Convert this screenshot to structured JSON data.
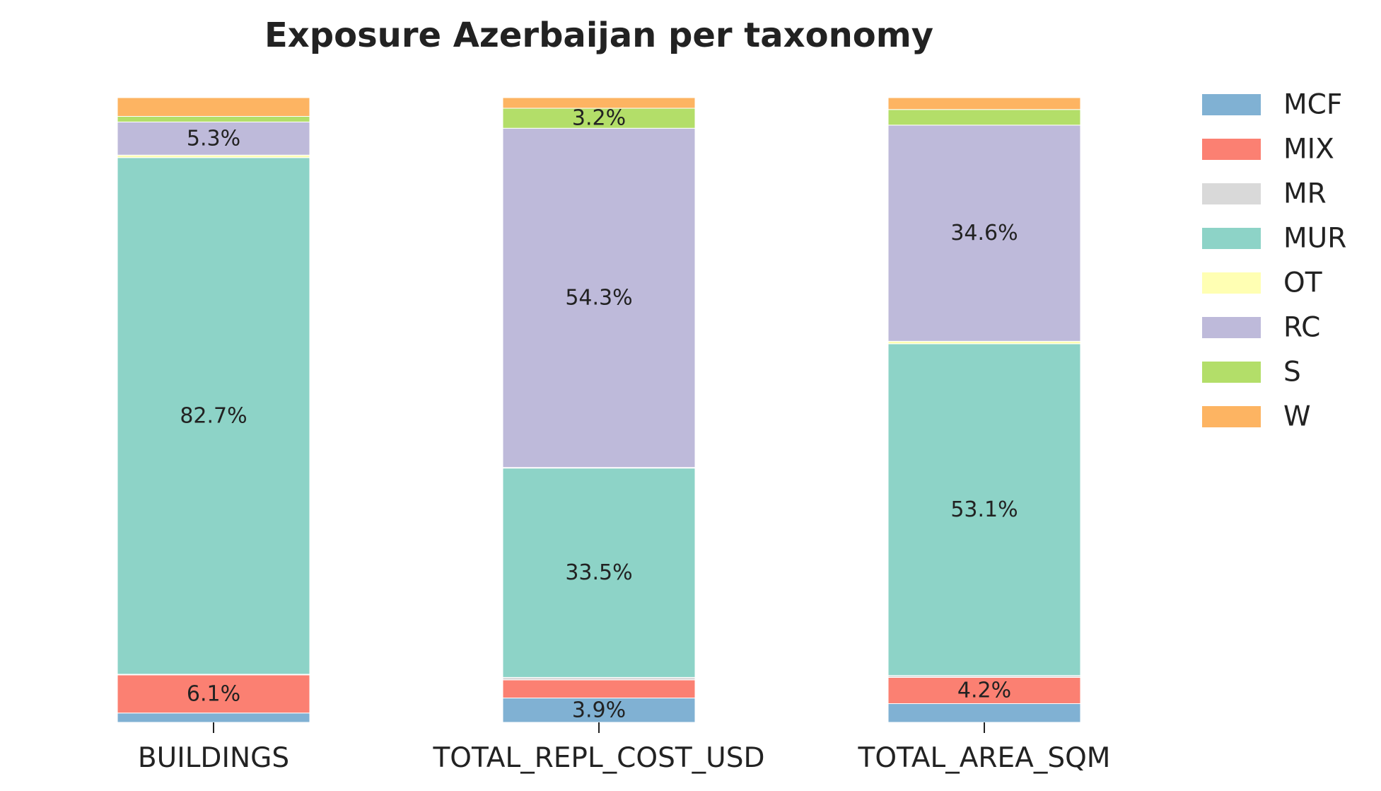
{
  "chart_data": {
    "type": "bar",
    "stacked": true,
    "title": "Exposure Azerbaijan per taxonomy",
    "categories": [
      "BUILDINGS",
      "TOTAL_REPL_COST_USD",
      "TOTAL_AREA_SQM"
    ],
    "ylim": [
      0,
      100
    ],
    "grid": false,
    "legend_position": "right",
    "series": [
      {
        "name": "MCF",
        "color": "#80b1d3",
        "values": [
          1.5,
          3.9,
          3.0
        ]
      },
      {
        "name": "MIX",
        "color": "#fb8072",
        "values": [
          6.1,
          2.9,
          4.2
        ]
      },
      {
        "name": "MR",
        "color": "#d9d9d9",
        "values": [
          0.1,
          0.4,
          0.3
        ]
      },
      {
        "name": "MUR",
        "color": "#8dd3c7",
        "values": [
          82.7,
          33.5,
          53.1
        ]
      },
      {
        "name": "OT",
        "color": "#ffffb3",
        "values": [
          0.4,
          0.1,
          0.4
        ]
      },
      {
        "name": "RC",
        "color": "#bebada",
        "values": [
          5.3,
          54.3,
          34.6
        ]
      },
      {
        "name": "S",
        "color": "#b3de69",
        "values": [
          0.9,
          3.2,
          2.5
        ]
      },
      {
        "name": "W",
        "color": "#fdb462",
        "values": [
          3.0,
          1.7,
          1.9
        ]
      }
    ],
    "data_labels": [
      [
        null,
        "6.1%",
        null,
        "82.7%",
        null,
        "5.3%",
        null,
        null
      ],
      [
        "3.9%",
        null,
        null,
        "33.5%",
        null,
        "54.3%",
        "3.2%",
        null
      ],
      [
        null,
        "4.2%",
        null,
        "53.1%",
        null,
        "34.6%",
        null,
        null
      ]
    ]
  }
}
